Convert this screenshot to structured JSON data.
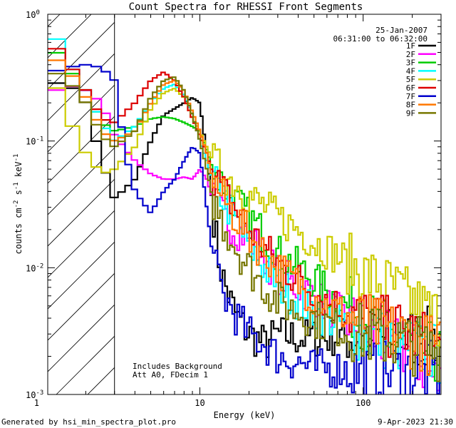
{
  "chart_data": {
    "type": "line",
    "title": "Count Spectra for RHESSI Front Segments",
    "xlabel": "Energy (keV)",
    "ylabel": {
      "base": "counts cm",
      "exp1": "-2",
      "mid": " s",
      "exp2": "-1",
      "tail": " keV",
      "exp3": "-1"
    },
    "x_scale": "log",
    "y_scale": "log",
    "xlim": [
      1.17,
      300
    ],
    "ylim": [
      0.001,
      1.0
    ],
    "x_ticks": [
      {
        "value": 1,
        "label": "1"
      },
      {
        "value": 10,
        "label": "10"
      },
      {
        "value": 100,
        "label": "100"
      }
    ],
    "y_ticks": [
      {
        "value": 1.0,
        "base": "10",
        "exp": "0"
      },
      {
        "value": 0.1,
        "base": "10",
        "exp": "-1"
      },
      {
        "value": 0.01,
        "base": "10",
        "exp": "-2"
      },
      {
        "value": 0.001,
        "base": "10",
        "exp": "-3"
      }
    ],
    "attenuator_cutoff_keV": 3,
    "date": "25-Jan-2007",
    "time_range": "06:31:00 to 06:32:00",
    "annotations": [
      "Includes Background",
      "Att A0, FDecim 1"
    ],
    "footer_left": "Generated by hsi_min_spectra_plot.pro",
    "footer_right": "9-Apr-2023 21:30",
    "series": [
      {
        "name": "1F",
        "color": "#000000",
        "points": [
          [
            1.25,
            0.28
          ],
          [
            1.5,
            0.3
          ],
          [
            2,
            0.2
          ],
          [
            2.5,
            0.07
          ],
          [
            3,
            0.035
          ],
          [
            4,
            0.05
          ],
          [
            5,
            0.1
          ],
          [
            6,
            0.16
          ],
          [
            7,
            0.18
          ],
          [
            8,
            0.2
          ],
          [
            9,
            0.22
          ],
          [
            10,
            0.2
          ],
          [
            11,
            0.08
          ],
          [
            12,
            0.03
          ],
          [
            13,
            0.012
          ],
          [
            14,
            0.008
          ],
          [
            15,
            0.006
          ],
          [
            17,
            0.004
          ],
          [
            20,
            0.003
          ],
          [
            25,
            0.0025
          ],
          [
            30,
            0.003
          ],
          [
            40,
            0.0028
          ],
          [
            50,
            0.0028
          ],
          [
            60,
            0.0028
          ],
          [
            80,
            0.0029
          ],
          [
            100,
            0.0028
          ],
          [
            150,
            0.0028
          ],
          [
            200,
            0.0028
          ],
          [
            250,
            0.0028
          ],
          [
            300,
            0.0028
          ]
        ]
      },
      {
        "name": "2F",
        "color": "#ff00ff",
        "points": [
          [
            1.25,
            0.24
          ],
          [
            1.5,
            0.28
          ],
          [
            2,
            0.25
          ],
          [
            2.5,
            0.2
          ],
          [
            3,
            0.11
          ],
          [
            4,
            0.07
          ],
          [
            5,
            0.055
          ],
          [
            6,
            0.05
          ],
          [
            7,
            0.05
          ],
          [
            8,
            0.052
          ],
          [
            9,
            0.05
          ],
          [
            10,
            0.06
          ],
          [
            11,
            0.05
          ],
          [
            12,
            0.035
          ],
          [
            14,
            0.025
          ],
          [
            17,
            0.02
          ],
          [
            20,
            0.017
          ],
          [
            25,
            0.012
          ],
          [
            30,
            0.009
          ],
          [
            40,
            0.007
          ],
          [
            50,
            0.006
          ],
          [
            60,
            0.005
          ],
          [
            80,
            0.004
          ],
          [
            100,
            0.0032
          ],
          [
            150,
            0.0025
          ],
          [
            200,
            0.0022
          ],
          [
            250,
            0.0015
          ],
          [
            300,
            0.0012
          ]
        ]
      },
      {
        "name": "3F",
        "color": "#00cc00",
        "points": [
          [
            1.25,
            0.55
          ],
          [
            1.5,
            0.4
          ],
          [
            2,
            0.25
          ],
          [
            2.5,
            0.14
          ],
          [
            3,
            0.12
          ],
          [
            4,
            0.13
          ],
          [
            5,
            0.15
          ],
          [
            6,
            0.155
          ],
          [
            7,
            0.15
          ],
          [
            8,
            0.14
          ],
          [
            9,
            0.13
          ],
          [
            10,
            0.12
          ],
          [
            11,
            0.085
          ],
          [
            12,
            0.06
          ],
          [
            14,
            0.045
          ],
          [
            17,
            0.032
          ],
          [
            20,
            0.025
          ],
          [
            25,
            0.018
          ],
          [
            30,
            0.013
          ],
          [
            40,
            0.01
          ],
          [
            50,
            0.008
          ],
          [
            60,
            0.0065
          ],
          [
            80,
            0.005
          ],
          [
            100,
            0.004
          ],
          [
            150,
            0.003
          ],
          [
            200,
            0.0025
          ],
          [
            250,
            0.0022
          ],
          [
            300,
            0.002
          ]
        ]
      },
      {
        "name": "4F",
        "color": "#00ffff",
        "points": [
          [
            1.25,
            0.75
          ],
          [
            1.5,
            0.45
          ],
          [
            2,
            0.25
          ],
          [
            2.5,
            0.14
          ],
          [
            3,
            0.1
          ],
          [
            4,
            0.13
          ],
          [
            5,
            0.2
          ],
          [
            6,
            0.26
          ],
          [
            7,
            0.28
          ],
          [
            8,
            0.23
          ],
          [
            9,
            0.16
          ],
          [
            10,
            0.1
          ],
          [
            11,
            0.07
          ],
          [
            12,
            0.05
          ],
          [
            14,
            0.035
          ],
          [
            17,
            0.022
          ],
          [
            20,
            0.015
          ],
          [
            25,
            0.01
          ],
          [
            30,
            0.0075
          ],
          [
            40,
            0.0055
          ],
          [
            50,
            0.0045
          ],
          [
            60,
            0.004
          ],
          [
            80,
            0.0035
          ],
          [
            100,
            0.003
          ],
          [
            150,
            0.0026
          ],
          [
            200,
            0.0024
          ],
          [
            250,
            0.0022
          ],
          [
            300,
            0.002
          ]
        ]
      },
      {
        "name": "5F",
        "color": "#cccc00",
        "points": [
          [
            1.25,
            0.32
          ],
          [
            1.5,
            0.17
          ],
          [
            2,
            0.08
          ],
          [
            2.5,
            0.055
          ],
          [
            3,
            0.06
          ],
          [
            4,
            0.09
          ],
          [
            5,
            0.18
          ],
          [
            6,
            0.24
          ],
          [
            7,
            0.26
          ],
          [
            8,
            0.22
          ],
          [
            9,
            0.15
          ],
          [
            10,
            0.12
          ],
          [
            11,
            0.09
          ],
          [
            12,
            0.07
          ],
          [
            14,
            0.055
          ],
          [
            17,
            0.045
          ],
          [
            20,
            0.037
          ],
          [
            25,
            0.03
          ],
          [
            30,
            0.025
          ],
          [
            40,
            0.02
          ],
          [
            50,
            0.016
          ],
          [
            60,
            0.014
          ],
          [
            80,
            0.011
          ],
          [
            100,
            0.009
          ],
          [
            150,
            0.007
          ],
          [
            200,
            0.0055
          ],
          [
            250,
            0.0045
          ],
          [
            300,
            0.004
          ]
        ]
      },
      {
        "name": "6F",
        "color": "#dd0000",
        "points": [
          [
            1.25,
            0.58
          ],
          [
            1.5,
            0.45
          ],
          [
            2,
            0.25
          ],
          [
            2.5,
            0.15
          ],
          [
            3,
            0.14
          ],
          [
            4,
            0.2
          ],
          [
            5,
            0.3
          ],
          [
            6,
            0.35
          ],
          [
            7,
            0.3
          ],
          [
            8,
            0.22
          ],
          [
            9,
            0.15
          ],
          [
            10,
            0.11
          ],
          [
            11,
            0.08
          ],
          [
            12,
            0.055
          ],
          [
            14,
            0.04
          ],
          [
            17,
            0.028
          ],
          [
            20,
            0.02
          ],
          [
            25,
            0.014
          ],
          [
            30,
            0.011
          ],
          [
            40,
            0.008
          ],
          [
            50,
            0.0065
          ],
          [
            60,
            0.0055
          ],
          [
            80,
            0.0045
          ],
          [
            100,
            0.004
          ],
          [
            150,
            0.0033
          ],
          [
            200,
            0.003
          ],
          [
            250,
            0.0025
          ],
          [
            300,
            0.0022
          ]
        ]
      },
      {
        "name": "7F",
        "color": "#0000cc",
        "points": [
          [
            1.25,
            0.35
          ],
          [
            1.5,
            0.38
          ],
          [
            2,
            0.4
          ],
          [
            2.5,
            0.38
          ],
          [
            3,
            0.3
          ],
          [
            3.5,
            0.08
          ],
          [
            4,
            0.04
          ],
          [
            5,
            0.027
          ],
          [
            6,
            0.04
          ],
          [
            7,
            0.05
          ],
          [
            8,
            0.07
          ],
          [
            9,
            0.09
          ],
          [
            10,
            0.08
          ],
          [
            11,
            0.03
          ],
          [
            12,
            0.012
          ],
          [
            14,
            0.006
          ],
          [
            17,
            0.004
          ],
          [
            20,
            0.003
          ],
          [
            25,
            0.0025
          ],
          [
            30,
            0.002
          ],
          [
            40,
            0.0018
          ],
          [
            50,
            0.0016
          ],
          [
            60,
            0.0016
          ],
          [
            80,
            0.0016
          ],
          [
            100,
            0.0015
          ],
          [
            150,
            0.0015
          ],
          [
            200,
            0.0015
          ],
          [
            250,
            0.0015
          ],
          [
            300,
            0.0015
          ]
        ]
      },
      {
        "name": "8F",
        "color": "#ff7700",
        "points": [
          [
            1.25,
            0.45
          ],
          [
            1.5,
            0.4
          ],
          [
            2,
            0.22
          ],
          [
            2.5,
            0.12
          ],
          [
            3,
            0.1
          ],
          [
            4,
            0.12
          ],
          [
            5,
            0.2
          ],
          [
            6,
            0.28
          ],
          [
            7,
            0.3
          ],
          [
            8,
            0.25
          ],
          [
            9,
            0.17
          ],
          [
            10,
            0.12
          ],
          [
            11,
            0.08
          ],
          [
            12,
            0.05
          ],
          [
            14,
            0.035
          ],
          [
            17,
            0.024
          ],
          [
            20,
            0.018
          ],
          [
            25,
            0.013
          ],
          [
            30,
            0.01
          ],
          [
            40,
            0.0075
          ],
          [
            50,
            0.006
          ],
          [
            60,
            0.005
          ],
          [
            80,
            0.0042
          ],
          [
            100,
            0.0037
          ],
          [
            150,
            0.0031
          ],
          [
            200,
            0.0028
          ],
          [
            250,
            0.0025
          ],
          [
            300,
            0.0023
          ]
        ]
      },
      {
        "name": "9F",
        "color": "#777700",
        "points": [
          [
            1.25,
            0.35
          ],
          [
            1.5,
            0.32
          ],
          [
            2,
            0.2
          ],
          [
            2.5,
            0.11
          ],
          [
            3,
            0.09
          ],
          [
            4,
            0.12
          ],
          [
            5,
            0.22
          ],
          [
            6,
            0.3
          ],
          [
            7,
            0.32
          ],
          [
            8,
            0.25
          ],
          [
            9,
            0.16
          ],
          [
            10,
            0.1
          ],
          [
            11,
            0.06
          ],
          [
            12,
            0.035
          ],
          [
            14,
            0.022
          ],
          [
            17,
            0.014
          ],
          [
            20,
            0.01
          ],
          [
            25,
            0.007
          ],
          [
            30,
            0.0055
          ],
          [
            40,
            0.0045
          ],
          [
            50,
            0.004
          ],
          [
            60,
            0.0036
          ],
          [
            80,
            0.0032
          ],
          [
            100,
            0.003
          ],
          [
            150,
            0.0027
          ],
          [
            200,
            0.0025
          ],
          [
            250,
            0.0023
          ],
          [
            300,
            0.0022
          ]
        ]
      }
    ]
  }
}
